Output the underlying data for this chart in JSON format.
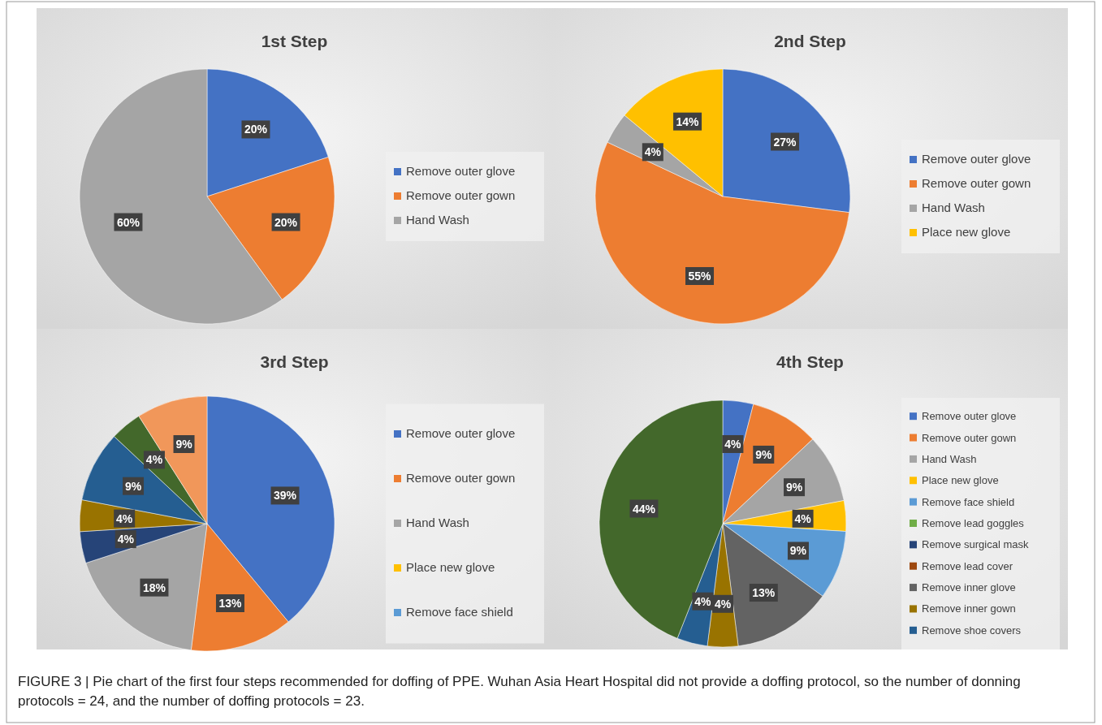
{
  "chart_data": [
    {
      "type": "pie",
      "title": "1st Step",
      "categories": [
        "Remove outer glove",
        "Remove outer gown",
        "Hand Wash"
      ],
      "values": [
        20,
        20,
        60
      ],
      "colors": [
        "#4472c4",
        "#ed7d31",
        "#a5a5a5"
      ],
      "value_labels": [
        "20%",
        "20%",
        "60%"
      ],
      "legend": "right",
      "annotations": [
        "FIGURE 3 | Pie chart of the first four steps recommended for doffing of PPE. Wuhan Asia Heart Hospital did not provide a doffing protocol, so the number of donning protocols = 24, and the number of doffing protocols = 23."
      ]
    },
    {
      "type": "pie",
      "title": "2nd Step",
      "categories": [
        "Remove outer glove",
        "Remove outer gown",
        "Hand Wash",
        "Place new glove"
      ],
      "values": [
        27,
        55,
        4,
        14
      ],
      "colors": [
        "#4472c4",
        "#ed7d31",
        "#a5a5a5",
        "#ffc000"
      ],
      "value_labels": [
        "27%",
        "55%",
        "4%",
        "14%"
      ],
      "legend": "right"
    },
    {
      "type": "pie",
      "title": "3rd Step",
      "categories": [
        "Remove outer glove",
        "Remove outer gown",
        "Hand Wash",
        "Place new glove",
        "Remove face shield",
        null,
        null,
        null,
        null,
        null
      ],
      "values": [
        39,
        13,
        18,
        0,
        0,
        4,
        4,
        9,
        4,
        9
      ],
      "colors": [
        "#4472c4",
        "#ed7d31",
        "#a5a5a5",
        "#ffc000",
        "#5b9bd5",
        "#264478",
        "#997300",
        "#255e91",
        "#43682b",
        "#f1975a"
      ],
      "value_labels": [
        "39%",
        "13%",
        "18%",
        null,
        null,
        "4%",
        "4%",
        "9%",
        "4%",
        "9%"
      ],
      "legend": "right"
    },
    {
      "type": "pie",
      "title": "4th Step",
      "categories": [
        "Remove outer glove",
        "Remove outer gown",
        "Hand Wash",
        "Place new glove",
        "Remove face shield",
        "Remove lead goggles",
        "Remove surgical mask",
        "Remove lead cover",
        "Remove inner glove",
        "Remove inner gown",
        "Remove shoe covers",
        null
      ],
      "values": [
        4,
        9,
        9,
        4,
        9,
        0,
        0,
        0,
        13,
        4,
        4,
        44
      ],
      "colors": [
        "#4472c4",
        "#ed7d31",
        "#a5a5a5",
        "#ffc000",
        "#5b9bd5",
        "#70ad47",
        "#264478",
        "#9e480e",
        "#636363",
        "#997300",
        "#255e91",
        "#43682b"
      ],
      "value_labels": [
        "4%",
        "9%",
        "9%",
        "4%",
        "9%",
        null,
        null,
        null,
        "13%",
        "4%",
        "4%",
        "44%"
      ],
      "legend": "right"
    }
  ]
}
